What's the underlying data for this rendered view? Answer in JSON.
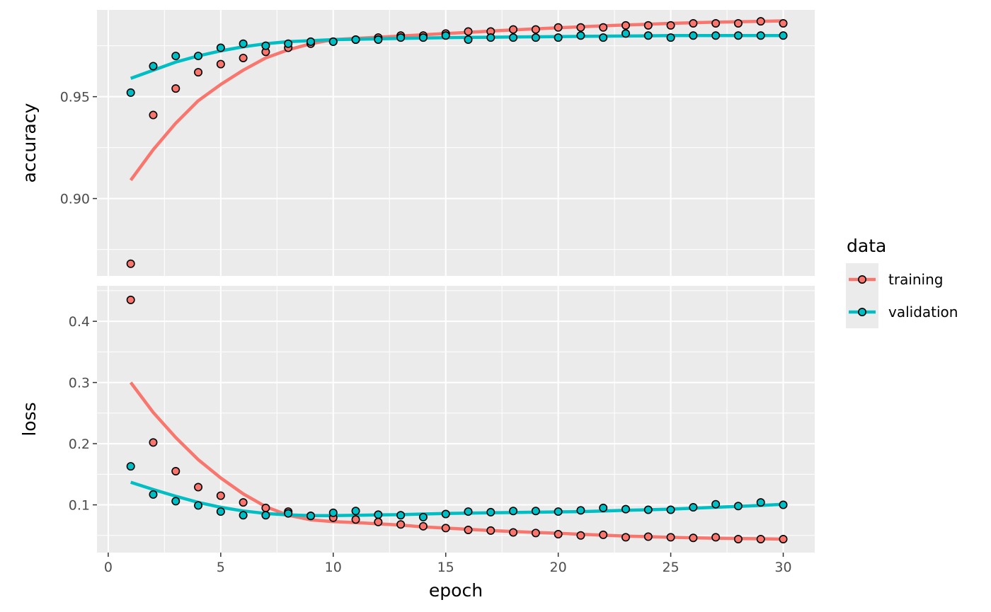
{
  "chart_data": {
    "type": "scatter",
    "facet_panels": [
      "accuracy",
      "loss"
    ],
    "x": [
      1,
      2,
      3,
      4,
      5,
      6,
      7,
      8,
      9,
      10,
      11,
      12,
      13,
      14,
      15,
      16,
      17,
      18,
      19,
      20,
      21,
      22,
      23,
      24,
      25,
      26,
      27,
      28,
      29,
      30
    ],
    "xlabel": "epoch",
    "xlim": [
      -0.5,
      31.4
    ],
    "x_ticks": [
      "0",
      "5",
      "10",
      "15",
      "20",
      "25",
      "30"
    ],
    "legend": {
      "title": "data",
      "position": "right"
    },
    "grid": true,
    "panels": [
      {
        "name": "accuracy",
        "ylabel": "accuracy",
        "ylim": [
          0.862,
          0.9926
        ],
        "y_ticks": [
          "0.90",
          "0.95"
        ],
        "series": [
          {
            "name": "training",
            "color": "#F8766D",
            "points": [
              0.868,
              0.941,
              0.954,
              0.962,
              0.966,
              0.969,
              0.972,
              0.974,
              0.976,
              0.977,
              0.978,
              0.979,
              0.98,
              0.98,
              0.981,
              0.982,
              0.982,
              0.983,
              0.983,
              0.984,
              0.984,
              0.984,
              0.985,
              0.985,
              0.985,
              0.986,
              0.986,
              0.986,
              0.987,
              0.986
            ],
            "smooth": [
              0.909,
              0.924,
              0.937,
              0.948,
              0.956,
              0.963,
              0.969,
              0.973,
              0.976,
              0.978,
              0.9786,
              0.9792,
              0.9798,
              0.9804,
              0.981,
              0.9816,
              0.9822,
              0.9828,
              0.9833,
              0.9838,
              0.9843,
              0.9848,
              0.9852,
              0.9856,
              0.986,
              0.9863,
              0.9866,
              0.9868,
              0.987,
              0.9872
            ]
          },
          {
            "name": "validation",
            "color": "#00BFC4",
            "points": [
              0.952,
              0.965,
              0.97,
              0.97,
              0.974,
              0.976,
              0.975,
              0.976,
              0.977,
              0.977,
              0.978,
              0.978,
              0.979,
              0.979,
              0.98,
              0.978,
              0.979,
              0.979,
              0.979,
              0.979,
              0.98,
              0.979,
              0.981,
              0.98,
              0.979,
              0.98,
              0.98,
              0.98,
              0.98,
              0.98
            ],
            "smooth": [
              0.959,
              0.963,
              0.967,
              0.97,
              0.9725,
              0.9745,
              0.976,
              0.977,
              0.9775,
              0.978,
              0.9782,
              0.9784,
              0.9786,
              0.9788,
              0.979,
              0.9791,
              0.9792,
              0.9793,
              0.9794,
              0.9795,
              0.9796,
              0.9797,
              0.9798,
              0.9799,
              0.98,
              0.98,
              0.98,
              0.98,
              0.98,
              0.98
            ]
          }
        ]
      },
      {
        "name": "loss",
        "ylabel": "loss",
        "ylim": [
          0.022,
          0.458
        ],
        "y_ticks": [
          "0.1",
          "0.2",
          "0.3",
          "0.4"
        ],
        "series": [
          {
            "name": "training",
            "color": "#F8766D",
            "points": [
              0.435,
              0.202,
              0.155,
              0.129,
              0.115,
              0.104,
              0.095,
              0.089,
              0.082,
              0.079,
              0.076,
              0.072,
              0.068,
              0.065,
              0.062,
              0.059,
              0.058,
              0.055,
              0.054,
              0.052,
              0.05,
              0.051,
              0.047,
              0.048,
              0.047,
              0.046,
              0.047,
              0.044,
              0.044,
              0.044
            ],
            "smooth": [
              0.3,
              0.251,
              0.21,
              0.174,
              0.144,
              0.118,
              0.097,
              0.083,
              0.0755,
              0.0725,
              0.071,
              0.069,
              0.067,
              0.064,
              0.062,
              0.06,
              0.058,
              0.0565,
              0.055,
              0.0535,
              0.052,
              0.0505,
              0.049,
              0.048,
              0.047,
              0.0462,
              0.0455,
              0.045,
              0.0445,
              0.044
            ]
          },
          {
            "name": "validation",
            "color": "#00BFC4",
            "points": [
              0.163,
              0.117,
              0.106,
              0.099,
              0.089,
              0.083,
              0.083,
              0.086,
              0.082,
              0.087,
              0.09,
              0.084,
              0.083,
              0.08,
              0.085,
              0.089,
              0.088,
              0.09,
              0.09,
              0.089,
              0.091,
              0.095,
              0.093,
              0.092,
              0.092,
              0.096,
              0.101,
              0.098,
              0.104,
              0.1
            ],
            "smooth": [
              0.137,
              0.125,
              0.114,
              0.104,
              0.096,
              0.09,
              0.086,
              0.0835,
              0.0825,
              0.0825,
              0.083,
              0.0835,
              0.084,
              0.085,
              0.086,
              0.0865,
              0.087,
              0.0875,
              0.088,
              0.0885,
              0.089,
              0.09,
              0.091,
              0.092,
              0.093,
              0.0945,
              0.096,
              0.0975,
              0.099,
              0.101
            ]
          }
        ]
      }
    ]
  }
}
